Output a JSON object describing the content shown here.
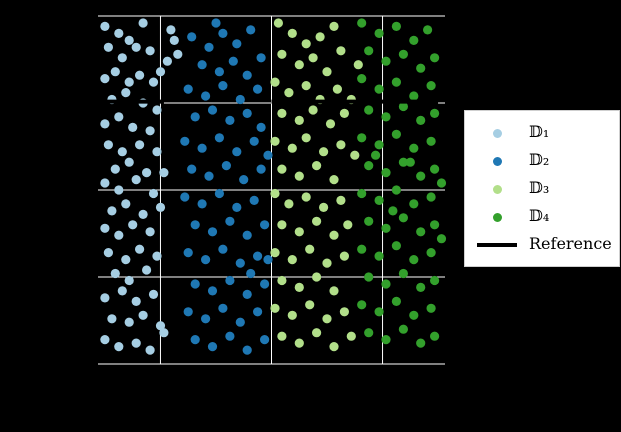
{
  "chart_data": {
    "type": "scatter",
    "title": "",
    "xlabel": "",
    "ylabel": "",
    "xlim": [
      0,
      1
    ],
    "ylim": [
      0,
      1
    ],
    "grid": true,
    "xticks": [
      0.18,
      0.5,
      0.82
    ],
    "yticks": [
      0.25,
      0.5,
      0.75
    ],
    "background": "#000000",
    "gridColor": "#ffffff",
    "legend_position": "right",
    "series": [
      {
        "name": "𝔻₁",
        "color": "#a6cee3",
        "points": [
          [
            0.02,
            0.97
          ],
          [
            0.06,
            0.95
          ],
          [
            0.09,
            0.93
          ],
          [
            0.13,
            0.98
          ],
          [
            0.03,
            0.91
          ],
          [
            0.07,
            0.88
          ],
          [
            0.11,
            0.91
          ],
          [
            0.15,
            0.9
          ],
          [
            0.18,
            0.84
          ],
          [
            0.02,
            0.82
          ],
          [
            0.05,
            0.84
          ],
          [
            0.09,
            0.81
          ],
          [
            0.12,
            0.83
          ],
          [
            0.16,
            0.81
          ],
          [
            0.04,
            0.76
          ],
          [
            0.08,
            0.78
          ],
          [
            0.13,
            0.75
          ],
          [
            0.17,
            0.73
          ],
          [
            0.02,
            0.69
          ],
          [
            0.06,
            0.71
          ],
          [
            0.1,
            0.68
          ],
          [
            0.15,
            0.67
          ],
          [
            0.03,
            0.63
          ],
          [
            0.07,
            0.61
          ],
          [
            0.12,
            0.63
          ],
          [
            0.17,
            0.61
          ],
          [
            0.05,
            0.56
          ],
          [
            0.09,
            0.58
          ],
          [
            0.14,
            0.55
          ],
          [
            0.02,
            0.52
          ],
          [
            0.06,
            0.5
          ],
          [
            0.11,
            0.53
          ],
          [
            0.16,
            0.49
          ],
          [
            0.04,
            0.44
          ],
          [
            0.08,
            0.46
          ],
          [
            0.13,
            0.43
          ],
          [
            0.18,
            0.45
          ],
          [
            0.02,
            0.39
          ],
          [
            0.06,
            0.37
          ],
          [
            0.1,
            0.4
          ],
          [
            0.15,
            0.38
          ],
          [
            0.03,
            0.32
          ],
          [
            0.08,
            0.3
          ],
          [
            0.12,
            0.33
          ],
          [
            0.17,
            0.31
          ],
          [
            0.05,
            0.26
          ],
          [
            0.09,
            0.24
          ],
          [
            0.14,
            0.27
          ],
          [
            0.02,
            0.19
          ],
          [
            0.07,
            0.21
          ],
          [
            0.11,
            0.18
          ],
          [
            0.16,
            0.2
          ],
          [
            0.04,
            0.13
          ],
          [
            0.09,
            0.12
          ],
          [
            0.13,
            0.14
          ],
          [
            0.18,
            0.11
          ],
          [
            0.02,
            0.07
          ],
          [
            0.06,
            0.05
          ],
          [
            0.11,
            0.06
          ],
          [
            0.15,
            0.04
          ],
          [
            0.19,
            0.09
          ],
          [
            0.21,
            0.96
          ],
          [
            0.22,
            0.93
          ],
          [
            0.23,
            0.89
          ],
          [
            0.2,
            0.87
          ],
          [
            0.19,
            0.55
          ]
        ]
      },
      {
        "name": "𝔻₂",
        "color": "#1f78b4",
        "points": [
          [
            0.34,
            0.98
          ],
          [
            0.27,
            0.94
          ],
          [
            0.32,
            0.91
          ],
          [
            0.36,
            0.95
          ],
          [
            0.4,
            0.92
          ],
          [
            0.44,
            0.96
          ],
          [
            0.3,
            0.86
          ],
          [
            0.35,
            0.84
          ],
          [
            0.39,
            0.87
          ],
          [
            0.43,
            0.83
          ],
          [
            0.47,
            0.88
          ],
          [
            0.26,
            0.79
          ],
          [
            0.31,
            0.77
          ],
          [
            0.36,
            0.8
          ],
          [
            0.41,
            0.76
          ],
          [
            0.46,
            0.79
          ],
          [
            0.28,
            0.71
          ],
          [
            0.33,
            0.73
          ],
          [
            0.38,
            0.7
          ],
          [
            0.43,
            0.72
          ],
          [
            0.47,
            0.68
          ],
          [
            0.25,
            0.64
          ],
          [
            0.3,
            0.62
          ],
          [
            0.35,
            0.65
          ],
          [
            0.4,
            0.61
          ],
          [
            0.45,
            0.64
          ],
          [
            0.27,
            0.56
          ],
          [
            0.32,
            0.54
          ],
          [
            0.37,
            0.57
          ],
          [
            0.42,
            0.53
          ],
          [
            0.47,
            0.56
          ],
          [
            0.25,
            0.48
          ],
          [
            0.3,
            0.46
          ],
          [
            0.35,
            0.49
          ],
          [
            0.4,
            0.45
          ],
          [
            0.45,
            0.47
          ],
          [
            0.28,
            0.4
          ],
          [
            0.33,
            0.38
          ],
          [
            0.38,
            0.41
          ],
          [
            0.43,
            0.37
          ],
          [
            0.48,
            0.4
          ],
          [
            0.26,
            0.32
          ],
          [
            0.31,
            0.3
          ],
          [
            0.36,
            0.33
          ],
          [
            0.41,
            0.29
          ],
          [
            0.46,
            0.31
          ],
          [
            0.28,
            0.23
          ],
          [
            0.33,
            0.21
          ],
          [
            0.38,
            0.24
          ],
          [
            0.43,
            0.2
          ],
          [
            0.48,
            0.23
          ],
          [
            0.26,
            0.15
          ],
          [
            0.31,
            0.13
          ],
          [
            0.36,
            0.16
          ],
          [
            0.41,
            0.12
          ],
          [
            0.46,
            0.15
          ],
          [
            0.28,
            0.07
          ],
          [
            0.33,
            0.05
          ],
          [
            0.38,
            0.08
          ],
          [
            0.43,
            0.04
          ],
          [
            0.48,
            0.07
          ],
          [
            0.49,
            0.6
          ],
          [
            0.49,
            0.3
          ],
          [
            0.44,
            0.26
          ]
        ]
      },
      {
        "name": "𝔻₃",
        "color": "#b2df8a",
        "points": [
          [
            0.52,
            0.98
          ],
          [
            0.56,
            0.95
          ],
          [
            0.6,
            0.92
          ],
          [
            0.64,
            0.94
          ],
          [
            0.68,
            0.97
          ],
          [
            0.53,
            0.89
          ],
          [
            0.58,
            0.86
          ],
          [
            0.62,
            0.88
          ],
          [
            0.66,
            0.84
          ],
          [
            0.7,
            0.9
          ],
          [
            0.51,
            0.81
          ],
          [
            0.55,
            0.78
          ],
          [
            0.6,
            0.8
          ],
          [
            0.64,
            0.76
          ],
          [
            0.69,
            0.79
          ],
          [
            0.53,
            0.72
          ],
          [
            0.58,
            0.7
          ],
          [
            0.62,
            0.73
          ],
          [
            0.67,
            0.69
          ],
          [
            0.71,
            0.72
          ],
          [
            0.51,
            0.64
          ],
          [
            0.56,
            0.62
          ],
          [
            0.6,
            0.65
          ],
          [
            0.65,
            0.61
          ],
          [
            0.7,
            0.63
          ],
          [
            0.53,
            0.56
          ],
          [
            0.58,
            0.54
          ],
          [
            0.63,
            0.57
          ],
          [
            0.68,
            0.53
          ],
          [
            0.51,
            0.49
          ],
          [
            0.55,
            0.46
          ],
          [
            0.6,
            0.48
          ],
          [
            0.65,
            0.45
          ],
          [
            0.7,
            0.47
          ],
          [
            0.53,
            0.4
          ],
          [
            0.58,
            0.38
          ],
          [
            0.63,
            0.41
          ],
          [
            0.68,
            0.37
          ],
          [
            0.72,
            0.4
          ],
          [
            0.51,
            0.32
          ],
          [
            0.56,
            0.3
          ],
          [
            0.61,
            0.33
          ],
          [
            0.66,
            0.29
          ],
          [
            0.71,
            0.31
          ],
          [
            0.53,
            0.24
          ],
          [
            0.58,
            0.22
          ],
          [
            0.63,
            0.25
          ],
          [
            0.68,
            0.21
          ],
          [
            0.51,
            0.16
          ],
          [
            0.56,
            0.14
          ],
          [
            0.61,
            0.17
          ],
          [
            0.66,
            0.13
          ],
          [
            0.71,
            0.15
          ],
          [
            0.53,
            0.08
          ],
          [
            0.58,
            0.06
          ],
          [
            0.63,
            0.09
          ],
          [
            0.68,
            0.05
          ],
          [
            0.73,
            0.08
          ],
          [
            0.74,
            0.6
          ],
          [
            0.73,
            0.76
          ],
          [
            0.75,
            0.86
          ]
        ]
      },
      {
        "name": "𝔻₄",
        "color": "#33a02c",
        "points": [
          [
            0.76,
            0.98
          ],
          [
            0.81,
            0.95
          ],
          [
            0.86,
            0.97
          ],
          [
            0.91,
            0.93
          ],
          [
            0.95,
            0.96
          ],
          [
            0.78,
            0.9
          ],
          [
            0.83,
            0.87
          ],
          [
            0.88,
            0.89
          ],
          [
            0.93,
            0.85
          ],
          [
            0.97,
            0.88
          ],
          [
            0.76,
            0.82
          ],
          [
            0.81,
            0.79
          ],
          [
            0.86,
            0.81
          ],
          [
            0.91,
            0.77
          ],
          [
            0.96,
            0.8
          ],
          [
            0.78,
            0.73
          ],
          [
            0.83,
            0.71
          ],
          [
            0.88,
            0.74
          ],
          [
            0.93,
            0.7
          ],
          [
            0.97,
            0.72
          ],
          [
            0.76,
            0.65
          ],
          [
            0.81,
            0.63
          ],
          [
            0.86,
            0.66
          ],
          [
            0.91,
            0.62
          ],
          [
            0.96,
            0.64
          ],
          [
            0.78,
            0.57
          ],
          [
            0.83,
            0.55
          ],
          [
            0.88,
            0.58
          ],
          [
            0.93,
            0.54
          ],
          [
            0.97,
            0.56
          ],
          [
            0.76,
            0.49
          ],
          [
            0.81,
            0.47
          ],
          [
            0.86,
            0.5
          ],
          [
            0.91,
            0.46
          ],
          [
            0.96,
            0.48
          ],
          [
            0.78,
            0.41
          ],
          [
            0.83,
            0.39
          ],
          [
            0.88,
            0.42
          ],
          [
            0.93,
            0.38
          ],
          [
            0.97,
            0.4
          ],
          [
            0.76,
            0.33
          ],
          [
            0.81,
            0.31
          ],
          [
            0.86,
            0.34
          ],
          [
            0.91,
            0.3
          ],
          [
            0.96,
            0.32
          ],
          [
            0.78,
            0.25
          ],
          [
            0.83,
            0.23
          ],
          [
            0.88,
            0.26
          ],
          [
            0.93,
            0.22
          ],
          [
            0.97,
            0.24
          ],
          [
            0.76,
            0.17
          ],
          [
            0.81,
            0.15
          ],
          [
            0.86,
            0.18
          ],
          [
            0.91,
            0.14
          ],
          [
            0.96,
            0.16
          ],
          [
            0.78,
            0.09
          ],
          [
            0.83,
            0.07
          ],
          [
            0.88,
            0.1
          ],
          [
            0.93,
            0.06
          ],
          [
            0.97,
            0.08
          ],
          [
            0.99,
            0.52
          ],
          [
            0.99,
            0.36
          ],
          [
            0.85,
            0.44
          ],
          [
            0.9,
            0.58
          ],
          [
            0.8,
            0.6
          ]
        ]
      }
    ],
    "reference": {
      "name": "Reference",
      "color": "#000000",
      "segments": [
        [
          [
            0.0,
            0.754
          ],
          [
            0.19,
            0.754
          ]
        ],
        [
          [
            0.5,
            0.754
          ],
          [
            0.98,
            0.754
          ]
        ]
      ]
    }
  },
  "legend": {
    "items": [
      {
        "label": "𝔻₁",
        "color": "#a6cee3",
        "kind": "marker"
      },
      {
        "label": "𝔻₂",
        "color": "#1f78b4",
        "kind": "marker"
      },
      {
        "label": "𝔻₃",
        "color": "#b2df8a",
        "kind": "marker"
      },
      {
        "label": "𝔻₄",
        "color": "#33a02c",
        "kind": "marker"
      },
      {
        "label": "Reference",
        "color": "#000000",
        "kind": "line"
      }
    ]
  }
}
